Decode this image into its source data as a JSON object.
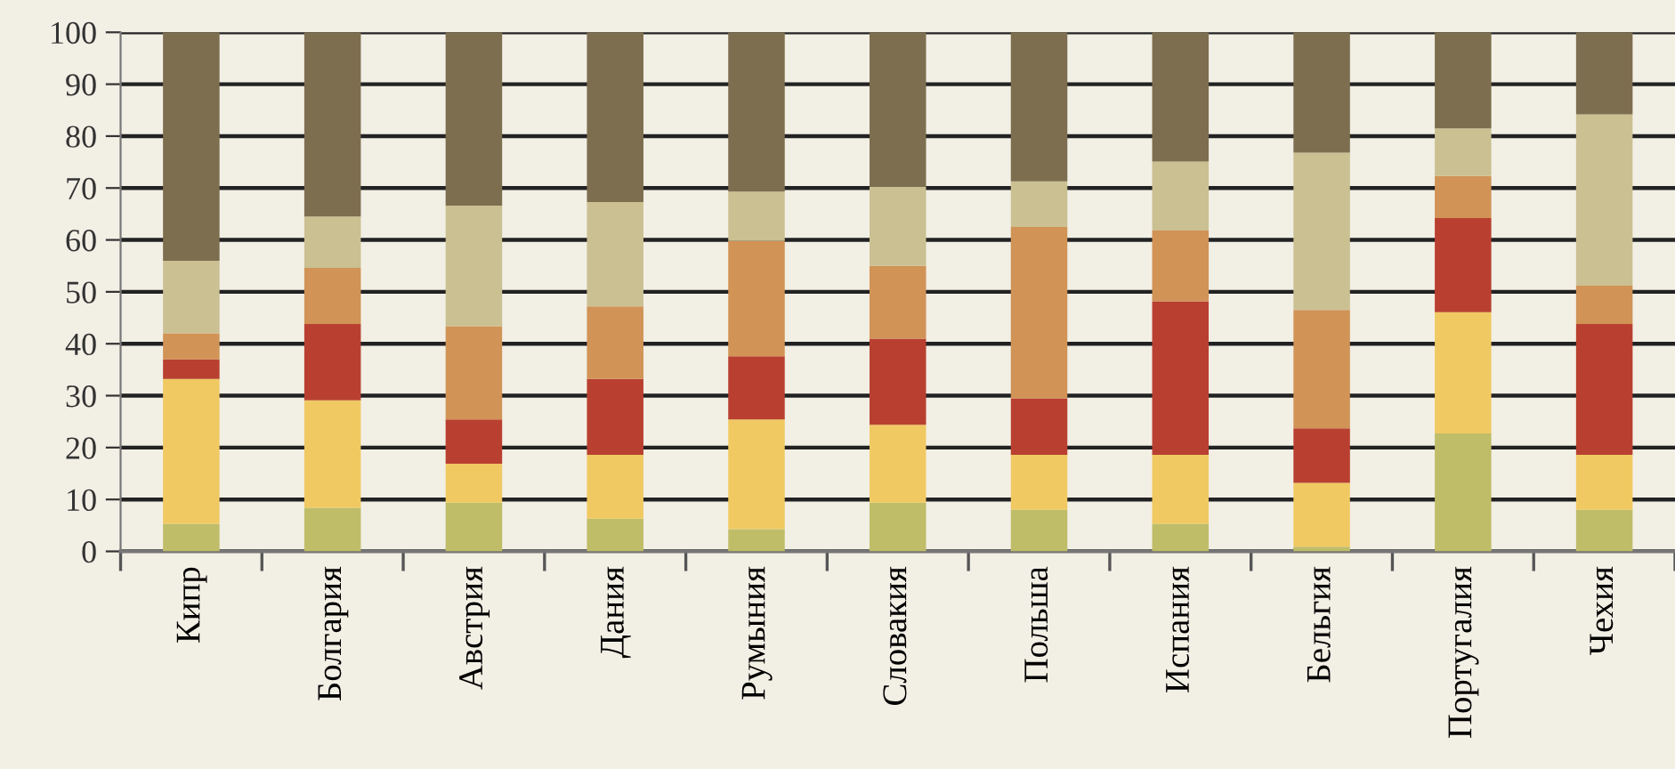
{
  "chart_data": {
    "type": "bar",
    "stacked": true,
    "categories": [
      "Кипр",
      "Болгария",
      "Австрия",
      "Дания",
      "Румыния",
      "Словакия",
      "Польша",
      "Испания",
      "Бельгия",
      "Португалия",
      "Чехия"
    ],
    "series": [
      {
        "color": "#bfbd68",
        "values": [
          5.3,
          8.4,
          9.4,
          6.3,
          4.3,
          9.4,
          8,
          5.3,
          0.9,
          22.7,
          8
        ]
      },
      {
        "color": "#f0c962",
        "values": [
          27.9,
          20.7,
          7.5,
          12.3,
          21.1,
          15,
          10.6,
          13.3,
          12.3,
          23.4,
          10.6
        ]
      },
      {
        "color": "#b94030",
        "values": [
          3.8,
          14.7,
          8.5,
          14.6,
          12.2,
          16.6,
          10.9,
          29.6,
          10.5,
          18.1,
          25.2
        ]
      },
      {
        "color": "#d19356",
        "values": [
          5,
          10.8,
          18,
          14,
          22.2,
          14,
          33,
          13.6,
          22.8,
          8.1,
          7.4
        ]
      },
      {
        "color": "#cbc092",
        "values": [
          14,
          9.9,
          23.2,
          20.1,
          9.5,
          15.3,
          8.8,
          13.3,
          30.3,
          9.2,
          33
        ]
      },
      {
        "color": "#7d6e4f",
        "values": [
          44,
          35.5,
          33.4,
          32.7,
          30.7,
          29.7,
          28.7,
          24.9,
          23.2,
          18.5,
          15.8
        ]
      }
    ],
    "ylim": [
      0,
      100
    ],
    "yticks": [
      0,
      10,
      20,
      30,
      40,
      50,
      60,
      70,
      80,
      90,
      100
    ],
    "grid": "y"
  }
}
